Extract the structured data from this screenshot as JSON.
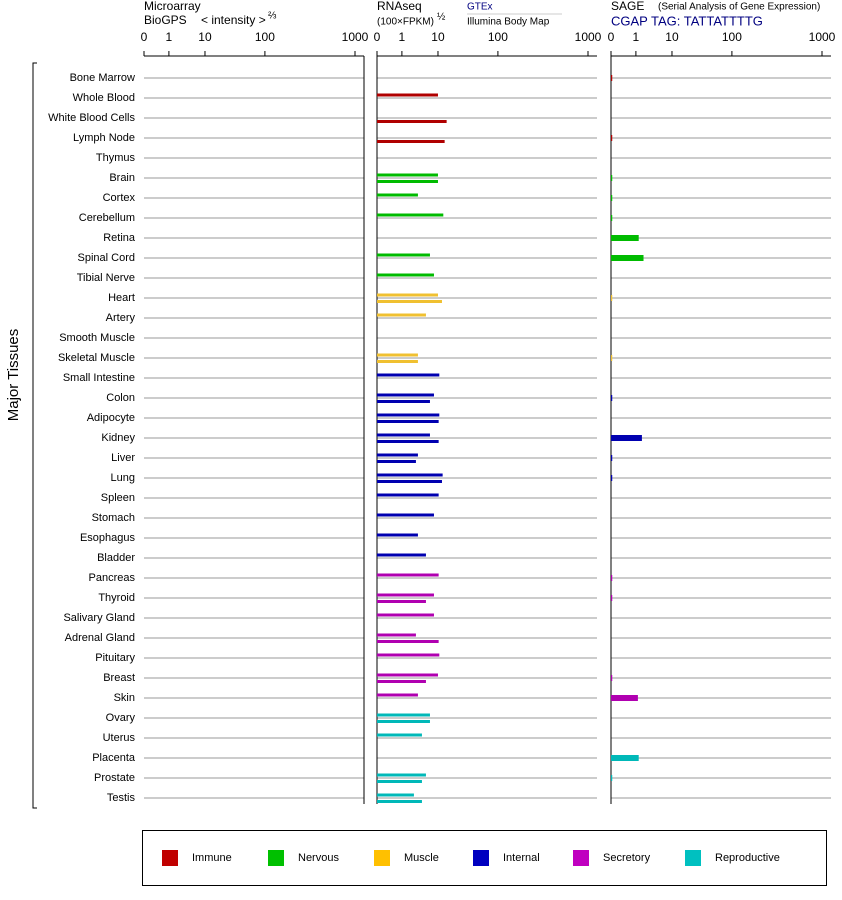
{
  "chart_data": {
    "type": "bar",
    "ylabel": "Major Tissues",
    "categories": [
      "Bone Marrow",
      "Whole Blood",
      "White Blood Cells",
      "Lymph Node",
      "Thymus",
      "Brain",
      "Cortex",
      "Cerebellum",
      "Retina",
      "Spinal Cord",
      "Tibial Nerve",
      "Heart",
      "Artery",
      "Smooth Muscle",
      "Skeletal Muscle",
      "Small Intestine",
      "Colon",
      "Adipocyte",
      "Kidney",
      "Liver",
      "Lung",
      "Spleen",
      "Stomach",
      "Esophagus",
      "Bladder",
      "Pancreas",
      "Thyroid",
      "Salivary Gland",
      "Adrenal Gland",
      "Pituitary",
      "Breast",
      "Skin",
      "Ovary",
      "Uterus",
      "Placenta",
      "Prostate",
      "Testis"
    ],
    "colors": [
      "#b00000",
      "#b00000",
      "#b00000",
      "#b00000",
      "#b00000",
      "#00bb00",
      "#00bb00",
      "#00bb00",
      "#00bb00",
      "#00bb00",
      "#00bb00",
      "#f0c030",
      "#f0c030",
      "#f0c030",
      "#f0c030",
      "#0000b0",
      "#0000b0",
      "#0000b0",
      "#0000b0",
      "#0000b0",
      "#0000b0",
      "#0000b0",
      "#0000b0",
      "#0000b0",
      "#0000b0",
      "#b000b0",
      "#b000b0",
      "#b000b0",
      "#b000b0",
      "#b000b0",
      "#b000b0",
      "#b000b0",
      "#00b8b8",
      "#00b8b8",
      "#00b8b8",
      "#00b8b8",
      "#00b8b8"
    ],
    "legend": [
      {
        "name": "Immune",
        "color": "#c00000"
      },
      {
        "name": "Nervous",
        "color": "#00c000"
      },
      {
        "name": "Muscle",
        "color": "#ffc000"
      },
      {
        "name": "Internal",
        "color": "#0000c0"
      },
      {
        "name": "Secretory",
        "color": "#c000c0"
      },
      {
        "name": "Reproductive",
        "color": "#00c0c0"
      }
    ],
    "panels": [
      {
        "title": "Microarray",
        "subtitle": "BioGPS",
        "axis_label": "< intensity >",
        "exponent": "⅔",
        "xlim": [
          0,
          1000
        ],
        "xticks": [
          0,
          1,
          10,
          100,
          1000
        ]
      },
      {
        "title": "RNAseq",
        "axis_label": "(100×FPKM)",
        "exponent": "½",
        "xlim": [
          0,
          1000
        ],
        "xticks": [
          0,
          1,
          10,
          100,
          1000
        ],
        "series": [
          {
            "name": "GTEx",
            "values": [
              null,
              10,
              null,
              null,
              null,
              10,
              5,
              18,
              null,
              8,
              9,
              10,
              7,
              null,
              5,
              12,
              9,
              12,
              8,
              5,
              17,
              11,
              9,
              5,
              7,
              11,
              9,
              9,
              4.5,
              12,
              10,
              5,
              8,
              6,
              null,
              7,
              4
            ]
          },
          {
            "name": "Illumina Body Map",
            "values": [
              null,
              null,
              23,
              20,
              null,
              10,
              null,
              null,
              null,
              null,
              null,
              16,
              null,
              null,
              5,
              null,
              8,
              11,
              11,
              4.5,
              16,
              null,
              null,
              null,
              null,
              null,
              7,
              null,
              11,
              null,
              7,
              null,
              8,
              null,
              null,
              6,
              6
            ]
          }
        ]
      },
      {
        "title": "SAGE",
        "subtitle_note": "(Serial Analysis of Gene Expression)",
        "subtitle": "CGAP TAG: TATTATTTTG",
        "xlim": [
          0,
          1000
        ],
        "xticks": [
          0,
          1,
          10,
          100,
          1000
        ],
        "series": [
          {
            "values": [
              0.05,
              0,
              0,
              0.05,
              0,
              0.05,
              0.05,
              0.05,
              1.7,
              2.9,
              0,
              0.05,
              0,
              0,
              0.05,
              0,
              0.05,
              0,
              2.5,
              0.05,
              0.05,
              0,
              0,
              0,
              0,
              0.05,
              0.05,
              0,
              0,
              0,
              0.05,
              1.5,
              0,
              0,
              1.7,
              0.05,
              0
            ]
          }
        ]
      }
    ]
  }
}
